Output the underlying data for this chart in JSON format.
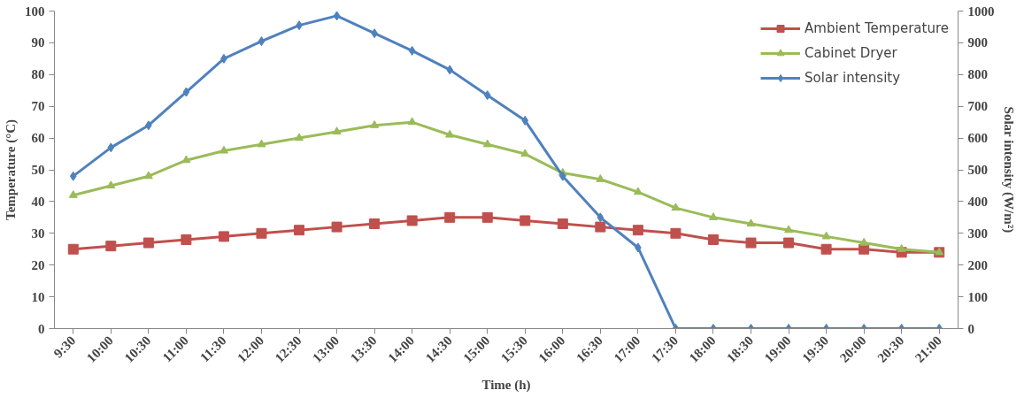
{
  "chart_data": {
    "type": "line",
    "xlabel": "Time (h)",
    "ylabel": "Temperature (°C)",
    "y2label": "Solar intensity (W/m²)",
    "categories": [
      "9:30",
      "10:00",
      "10:30",
      "11:00",
      "11:30",
      "12:00",
      "12:30",
      "13:00",
      "13:30",
      "14:00",
      "14:30",
      "15:00",
      "15:30",
      "16:00",
      "16:30",
      "17:00",
      "17:30",
      "18:00",
      "18:30",
      "19:00",
      "19:30",
      "20:00",
      "20:30",
      "21:00"
    ],
    "ylim": [
      0,
      100
    ],
    "yticks": [
      0,
      10,
      20,
      30,
      40,
      50,
      60,
      70,
      80,
      90,
      100
    ],
    "y2lim": [
      0,
      1000
    ],
    "y2ticks": [
      0,
      100,
      200,
      300,
      400,
      500,
      600,
      700,
      800,
      900,
      1000
    ],
    "grid": false,
    "legend": "top right",
    "series": [
      {
        "name": "Ambient Temperature",
        "color": "#c0504d",
        "marker": "square",
        "values": [
          25,
          26,
          27,
          28,
          29,
          30,
          31,
          32,
          33,
          34,
          35,
          35,
          34,
          33,
          32,
          31,
          30,
          28,
          27,
          27,
          25,
          25,
          24,
          24
        ]
      },
      {
        "name": "Cabinet Dryer",
        "color": "#9bbb59",
        "marker": "triangle",
        "values": [
          42,
          45,
          48,
          53,
          56,
          58,
          60,
          62,
          64,
          65,
          61,
          58,
          55,
          49,
          47,
          43,
          38,
          35,
          33,
          31,
          29,
          27,
          25,
          24
        ]
      },
      {
        "name": "Solar intensity",
        "color": "#4f81bd",
        "marker": "diamond",
        "axis": "y2",
        "values": [
          480,
          570,
          640,
          745,
          850,
          905,
          955,
          985,
          930,
          875,
          815,
          735,
          655,
          480,
          350,
          255,
          0,
          0,
          0,
          0,
          0,
          0,
          0,
          0
        ]
      }
    ]
  }
}
